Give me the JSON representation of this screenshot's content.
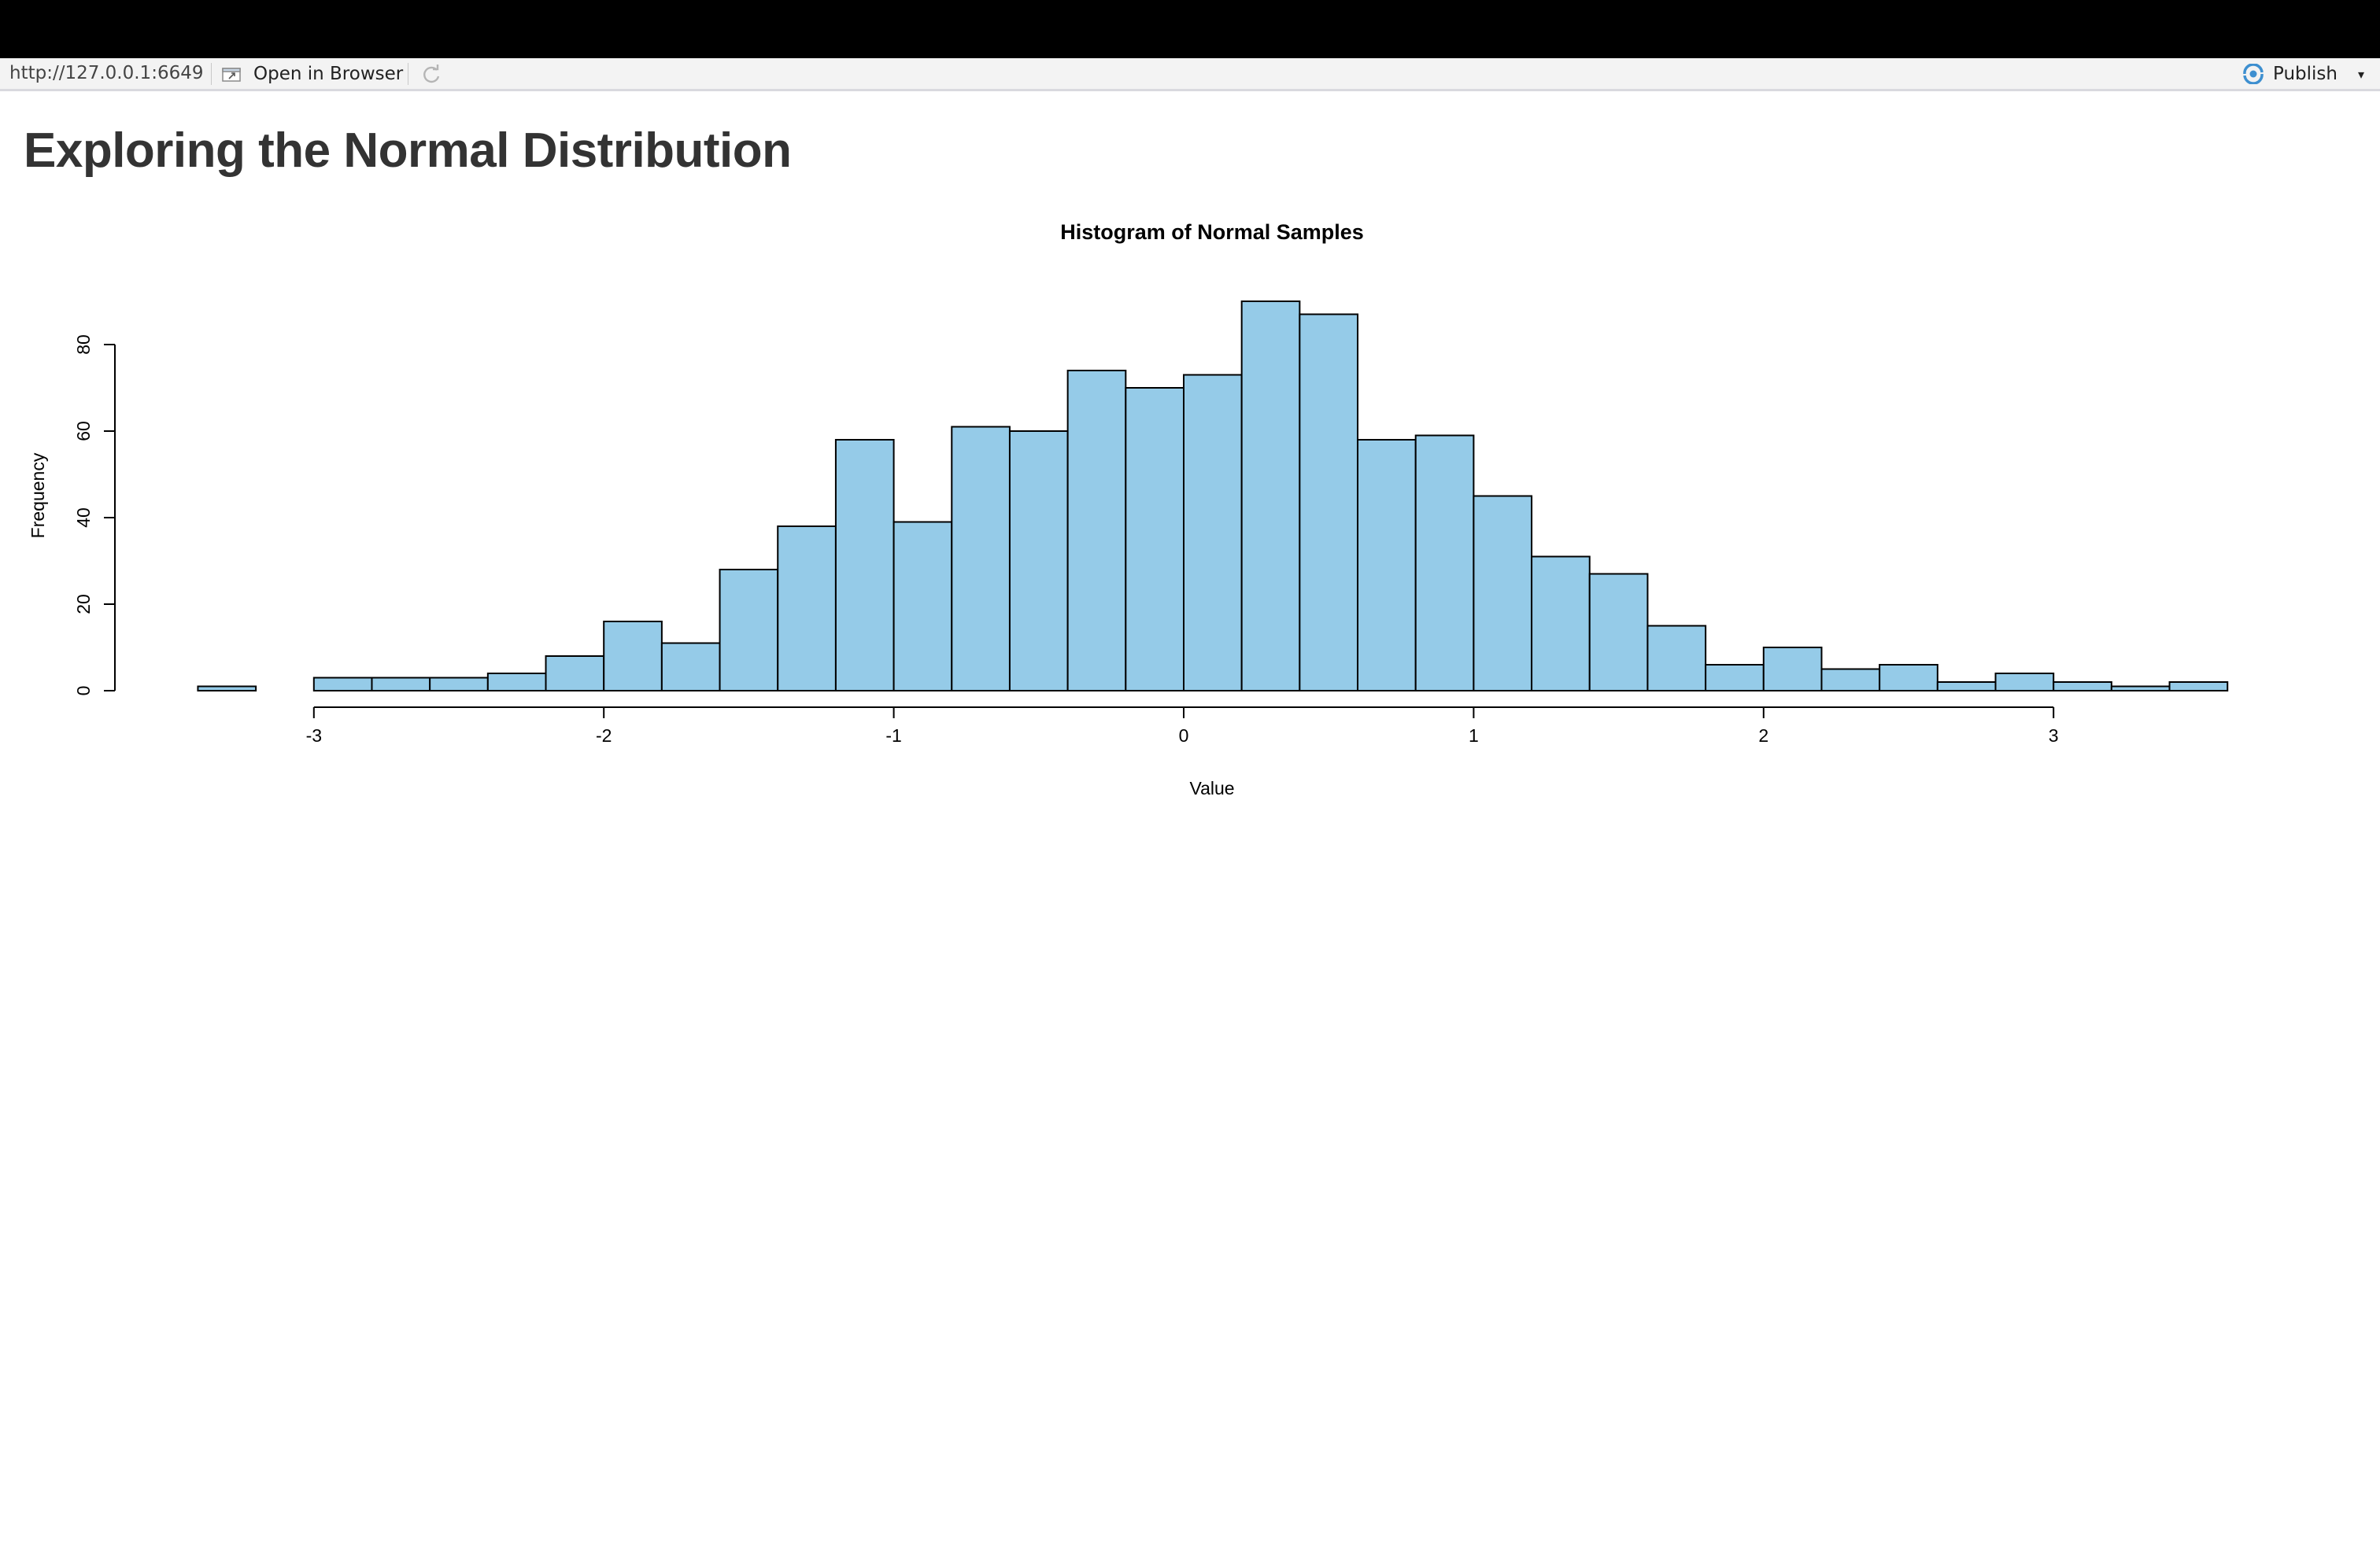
{
  "toolbar": {
    "url": "http://127.0.0.1:6649",
    "open_label": "Open in Browser",
    "publish_label": "Publish",
    "publish_color": "#3d8fd0"
  },
  "page": {
    "title": "Exploring the Normal Distribution"
  },
  "chart_data": {
    "type": "bar",
    "title": "Histogram of Normal Samples",
    "xlabel": "Value",
    "ylabel": "Frequency",
    "bar_color": "#95cbe8",
    "bin_width": 0.2,
    "bin_start": -3.4,
    "values": [
      1,
      0,
      3,
      3,
      3,
      4,
      8,
      16,
      11,
      28,
      38,
      58,
      39,
      61,
      60,
      74,
      70,
      73,
      90,
      87,
      58,
      59,
      45,
      31,
      27,
      15,
      6,
      10,
      5,
      6,
      2,
      4,
      2,
      1,
      2
    ],
    "x_ticks": [
      -3,
      -2,
      -1,
      0,
      1,
      2,
      3
    ],
    "y_ticks": [
      0,
      20,
      40,
      60,
      80
    ],
    "xlim": [
      -3.4,
      3.6
    ],
    "ylim": [
      0,
      90
    ],
    "grid": false
  }
}
